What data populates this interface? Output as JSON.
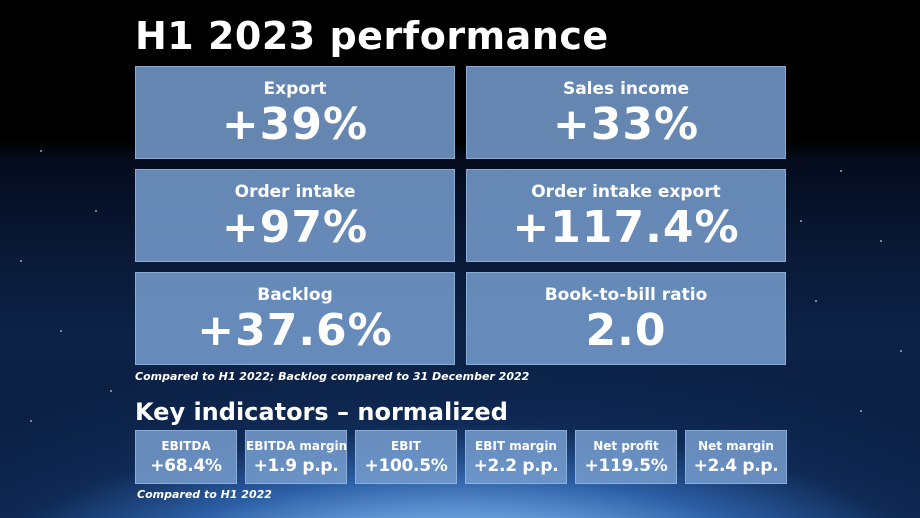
{
  "title": "H1 2023 performance",
  "tiles": [
    {
      "label": "Export",
      "value": "+39%"
    },
    {
      "label": "Sales income",
      "value": "+33%"
    },
    {
      "label": "Order intake",
      "value": "+97%"
    },
    {
      "label": "Order intake export",
      "value": "+117.4%"
    },
    {
      "label": "Backlog",
      "value": "+37.6%"
    },
    {
      "label": "Book-to-bill ratio",
      "value": "2.0"
    }
  ],
  "tiles_note": "Compared to H1 2022; Backlog compared to 31 December 2022",
  "indicators_title": "Key indicators – normalized",
  "indicators": [
    {
      "label": "EBITDA",
      "value": "+68.4%"
    },
    {
      "label": "EBITDA margin",
      "value": "+1.9 p.p."
    },
    {
      "label": "EBIT",
      "value": "+100.5%"
    },
    {
      "label": "EBIT margin",
      "value": "+2.2 p.p."
    },
    {
      "label": "Net profit",
      "value": "+119.5%"
    },
    {
      "label": "Net margin",
      "value": "+2.4 p.p."
    }
  ],
  "indicators_note": "Compared to H1 2022"
}
